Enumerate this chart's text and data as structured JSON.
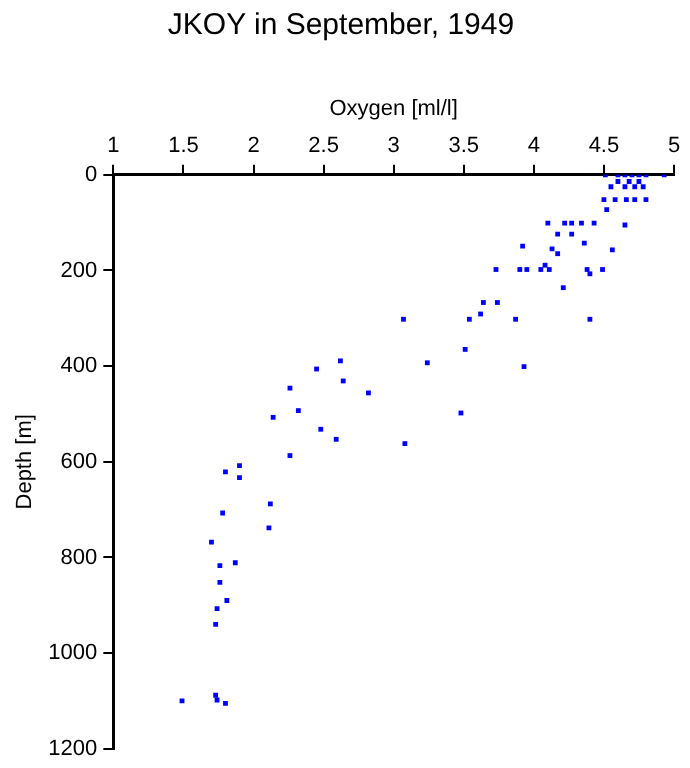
{
  "chart_data": {
    "type": "scatter",
    "title": "JKOY in September, 1949",
    "xlabel": "Oxygen [ml/l]",
    "ylabel": "Depth [m]",
    "xlim": [
      1,
      5
    ],
    "xticks": [
      1,
      1.5,
      2,
      2.5,
      3,
      3.5,
      4,
      4.5,
      5
    ],
    "ylim": [
      1200,
      0
    ],
    "yticks": [
      0,
      200,
      400,
      600,
      800,
      1000,
      1200
    ],
    "grid": false,
    "legend": false,
    "marker": "square",
    "series": [
      {
        "color": "#0000ff",
        "x": [
          4.51,
          4.6,
          4.65,
          4.7,
          4.75,
          4.8,
          4.93,
          4.6,
          4.68,
          4.75,
          4.55,
          4.65,
          4.72,
          4.78,
          4.5,
          4.58,
          4.66,
          4.72,
          4.8,
          4.52,
          4.1,
          4.22,
          4.27,
          4.34,
          4.43,
          4.65,
          4.17,
          4.27,
          4.36,
          3.92,
          4.13,
          4.17,
          4.56,
          4.08,
          3.73,
          3.9,
          3.95,
          4.05,
          4.11,
          4.38,
          4.49,
          4.4,
          4.21,
          3.64,
          3.74,
          3.62,
          3.07,
          3.54,
          3.87,
          4.4,
          3.51,
          3.93,
          3.24,
          2.62,
          2.45,
          2.64,
          2.26,
          2.82,
          3.48,
          2.32,
          2.14,
          2.48,
          2.59,
          3.08,
          2.26,
          1.9,
          1.8,
          1.9,
          2.12,
          1.78,
          2.11,
          1.7,
          1.87,
          1.76,
          1.76,
          1.81,
          1.74,
          1.73,
          1.49,
          1.73,
          1.74,
          1.8
        ],
        "values": [
          0,
          0,
          0,
          0,
          0,
          0,
          0,
          14,
          14,
          14,
          25,
          25,
          25,
          25,
          52,
          52,
          52,
          52,
          52,
          73,
          101,
          101,
          101,
          101,
          101,
          105,
          124,
          124,
          143,
          149,
          155,
          165,
          157,
          189,
          198,
          198,
          198,
          198,
          198,
          198,
          198,
          207,
          236,
          267,
          267,
          291,
          302,
          302,
          302,
          302,
          365,
          401,
          393,
          389,
          406,
          431,
          446,
          456,
          498,
          493,
          507,
          532,
          553,
          562,
          587,
          608,
          621,
          633,
          688,
          707,
          738,
          768,
          811,
          817,
          852,
          890,
          907,
          940,
          1100,
          1088,
          1098,
          1105
        ]
      }
    ]
  }
}
